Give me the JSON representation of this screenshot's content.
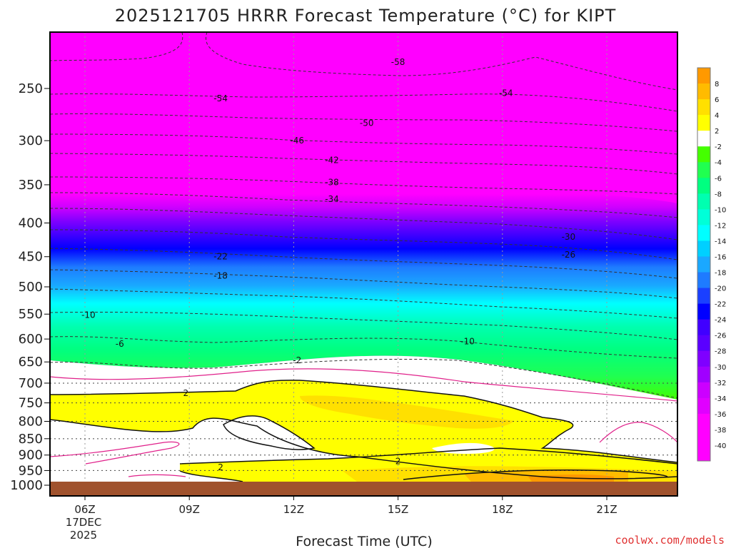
{
  "chart_data": {
    "type": "heatmap",
    "title": "2025121705 HRRR Forecast Temperature (°C) for KIPT",
    "xlabel": "Forecast Time (UTC)",
    "ylabel": "",
    "y_ticks": [
      250,
      300,
      350,
      400,
      450,
      500,
      550,
      600,
      650,
      700,
      750,
      800,
      850,
      900,
      950,
      1000
    ],
    "x_ticks": [
      {
        "hour": 6,
        "label": "06Z"
      },
      {
        "hour": 9,
        "label": "09Z"
      },
      {
        "hour": 12,
        "label": "12Z"
      },
      {
        "hour": 15,
        "label": "15Z"
      },
      {
        "hour": 18,
        "label": "18Z"
      },
      {
        "hour": 21,
        "label": "21Z"
      }
    ],
    "x_date_label": [
      "17DEC",
      "2025"
    ],
    "xlim": [
      5,
      23
    ],
    "ylim": [
      1000,
      200
    ],
    "colorbar_ticks": [
      8,
      6,
      4,
      2,
      -2,
      -4,
      -6,
      -8,
      -10,
      -12,
      -14,
      -16,
      -18,
      -20,
      -22,
      -24,
      -26,
      -28,
      -30,
      -32,
      -34,
      -36,
      -38,
      -40
    ],
    "colors": {
      "magenta": "#ff00ff",
      "violet": "#cc00ff",
      "purple": "#7f00ff",
      "indigo": "#4000ff",
      "blue": "#0000ff",
      "blue2": "#1a40ff",
      "blue3": "#1e7bff",
      "azure": "#1aa8ff",
      "sky": "#00d0ff",
      "cyan": "#00ffff",
      "aqua": "#00ffd8",
      "teal": "#00ffb0",
      "green1": "#00ff80",
      "green2": "#20ff50",
      "lime": "#44ff00",
      "white": "#ffffff",
      "yellow": "#ffff00",
      "gold": "#ffe000",
      "orange": "#ffbb00",
      "dorange": "#ff9900",
      "ground": "#a0522d",
      "warm_contour": "#e0208a"
    },
    "contour_labels": [
      {
        "text": "-58",
        "hour": 15.0,
        "p": 228
      },
      {
        "text": "-54",
        "hour": 9.9,
        "p": 259
      },
      {
        "text": "-54",
        "hour": 18.1,
        "p": 254
      },
      {
        "text": "-50",
        "hour": 14.1,
        "p": 282
      },
      {
        "text": "-46",
        "hour": 12.1,
        "p": 300
      },
      {
        "text": "-42",
        "hour": 13.1,
        "p": 321
      },
      {
        "text": "-38",
        "hour": 13.1,
        "p": 347
      },
      {
        "text": "-34",
        "hour": 13.1,
        "p": 368
      },
      {
        "text": "-30",
        "hour": 19.9,
        "p": 420
      },
      {
        "text": "-26",
        "hour": 19.9,
        "p": 447
      },
      {
        "text": "-22",
        "hour": 9.9,
        "p": 450
      },
      {
        "text": "-18",
        "hour": 9.9,
        "p": 481
      },
      {
        "text": "-10",
        "hour": 6.1,
        "p": 552
      },
      {
        "text": "-6",
        "hour": 7.0,
        "p": 610
      },
      {
        "text": "-10",
        "hour": 17.0,
        "p": 605
      },
      {
        "text": "-2",
        "hour": 12.1,
        "p": 646
      },
      {
        "text": "2",
        "hour": 8.9,
        "p": 725
      },
      {
        "text": "2",
        "hour": 15.0,
        "p": 920
      },
      {
        "text": "2",
        "hour": 9.9,
        "p": 940
      }
    ],
    "credit": "coolwx.com/models"
  }
}
